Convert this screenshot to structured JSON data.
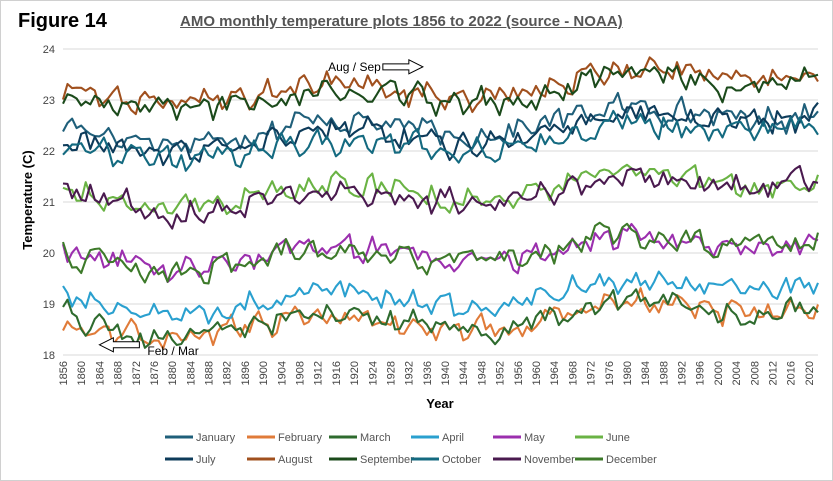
{
  "figure_label": "Figure 14",
  "chart_data": {
    "type": "line",
    "title": "AMO monthly temperature plots 1856 to 2022 (source - NOAA)",
    "xlabel": "Year",
    "ylabel": "Temperature (C)",
    "xlim": [
      1856,
      2022
    ],
    "ylim": [
      18,
      24
    ],
    "yticks": [
      18,
      19,
      20,
      21,
      22,
      23,
      24
    ],
    "xticks": [
      1856,
      1860,
      1864,
      1868,
      1872,
      1876,
      1880,
      1884,
      1888,
      1892,
      1896,
      1900,
      1904,
      1908,
      1912,
      1916,
      1920,
      1924,
      1928,
      1932,
      1936,
      1940,
      1944,
      1948,
      1952,
      1956,
      1960,
      1964,
      1968,
      1972,
      1976,
      1980,
      1984,
      1988,
      1992,
      1996,
      2000,
      2004,
      2008,
      2012,
      2016,
      2020
    ],
    "grid": "horizontal",
    "legend_position": "bottom",
    "annotations": [
      {
        "text": "Aug / Sep",
        "x": 1936,
        "y": 23.65
      },
      {
        "text": "Feb / Mar",
        "x": 1864,
        "y": 18.2
      }
    ],
    "series": [
      {
        "name": "January",
        "color": "#1f5f7a",
        "base": 22.35,
        "amp": 0.2,
        "trend": 0.55,
        "phase": 0.3
      },
      {
        "name": "February",
        "color": "#e07b39",
        "base": 18.5,
        "amp": 0.2,
        "trend": 0.6,
        "phase": 1.1
      },
      {
        "name": "March",
        "color": "#2e6b2e",
        "base": 18.55,
        "amp": 0.22,
        "trend": 0.55,
        "phase": 2.0
      },
      {
        "name": "April",
        "color": "#2aa0cf",
        "base": 18.95,
        "amp": 0.2,
        "trend": 0.55,
        "phase": 2.7
      },
      {
        "name": "May",
        "color": "#9b2fae",
        "base": 19.85,
        "amp": 0.18,
        "trend": 0.5,
        "phase": 3.4
      },
      {
        "name": "June",
        "color": "#6ab344",
        "base": 21.1,
        "amp": 0.2,
        "trend": 0.5,
        "phase": 4.1
      },
      {
        "name": "July",
        "color": "#0d3b5a",
        "base": 22.1,
        "amp": 0.18,
        "trend": 0.75,
        "phase": 4.8
      },
      {
        "name": "August",
        "color": "#a0501e",
        "base": 23.05,
        "amp": 0.18,
        "trend": 0.6,
        "phase": 5.5
      },
      {
        "name": "September",
        "color": "#1b4a1b",
        "base": 22.95,
        "amp": 0.18,
        "trend": 0.6,
        "phase": 0.9
      },
      {
        "name": "October",
        "color": "#146a80",
        "base": 21.95,
        "amp": 0.18,
        "trend": 0.75,
        "phase": 1.6
      },
      {
        "name": "November",
        "color": "#4a1a4f",
        "base": 21.0,
        "amp": 0.17,
        "trend": 0.55,
        "phase": 2.3
      },
      {
        "name": "December",
        "color": "#3d7a2a",
        "base": 19.85,
        "amp": 0.18,
        "trend": 0.55,
        "phase": 3.0
      }
    ]
  }
}
